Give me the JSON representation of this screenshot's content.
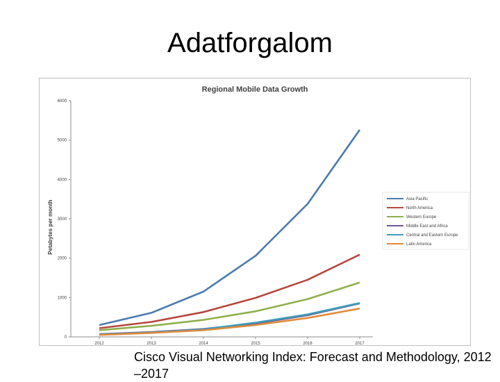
{
  "slide": {
    "title": "Adatforgalom",
    "caption": "Cisco Visual Networking Index: Forecast and Methodology, 2012 –2017"
  },
  "chart_data": {
    "type": "line",
    "title": "Regional Mobile Data Growth",
    "xlabel": "",
    "ylabel": "Petabytes per month",
    "x": [
      "2012",
      "2013",
      "2014",
      "2015",
      "2016",
      "2017"
    ],
    "ylim": [
      0,
      6000
    ],
    "yticks": [
      0,
      1000,
      2000,
      3000,
      4000,
      5000,
      6000
    ],
    "grid": false,
    "legend_position": "right",
    "series": [
      {
        "name": "Asia Pacific",
        "color": "#4a7ab0",
        "values": [
          300,
          610,
          1150,
          2060,
          3380,
          5260
        ]
      },
      {
        "name": "North America",
        "color": "#b5473f",
        "values": [
          220,
          380,
          630,
          990,
          1450,
          2090
        ]
      },
      {
        "name": "Western Europe",
        "color": "#8eb04d",
        "values": [
          170,
          280,
          430,
          650,
          960,
          1380
        ]
      },
      {
        "name": "Middle East and Africa",
        "color": "#6f568f",
        "values": [
          70,
          120,
          200,
          340,
          550,
          850
        ]
      },
      {
        "name": "Central and Eastern Europe",
        "color": "#3f9cb8",
        "values": [
          60,
          110,
          190,
          360,
          570,
          860
        ]
      },
      {
        "name": "Latin America",
        "color": "#e08a3c",
        "values": [
          50,
          100,
          170,
          300,
          480,
          720
        ]
      }
    ]
  }
}
